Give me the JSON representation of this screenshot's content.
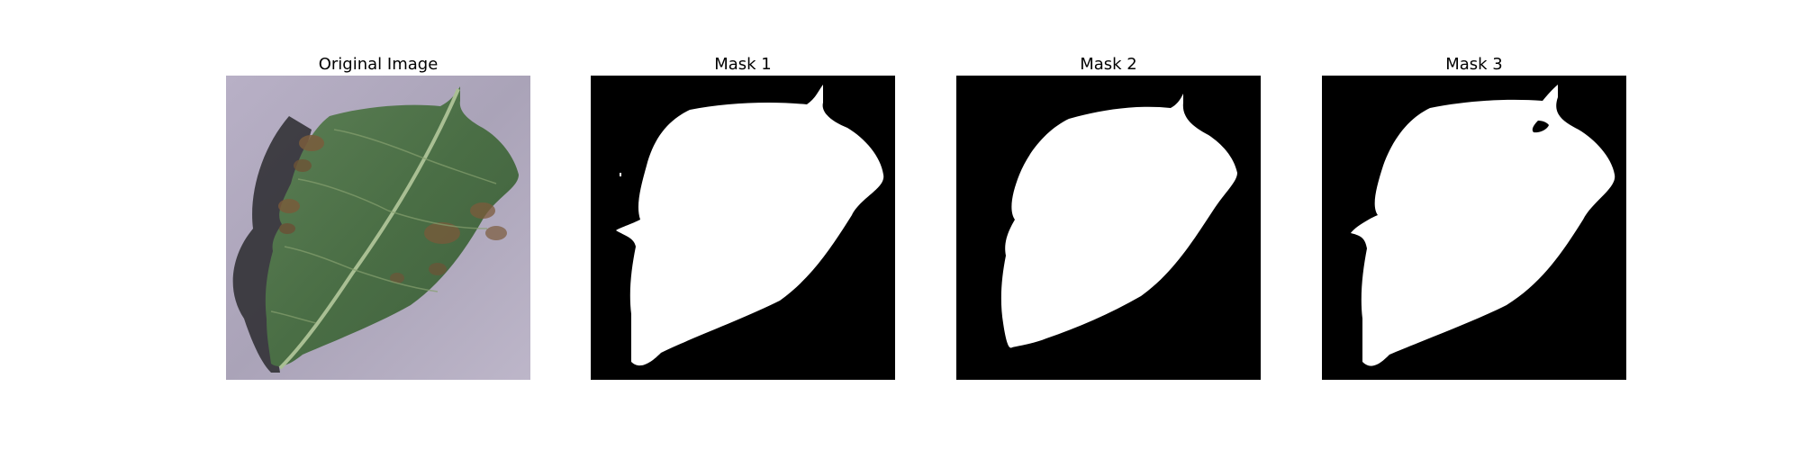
{
  "panels": [
    {
      "title": "Original Image"
    },
    {
      "title": "Mask 1"
    },
    {
      "title": "Mask 2"
    },
    {
      "title": "Mask 3"
    }
  ],
  "colors": {
    "background": "#b7b0c4",
    "leaf": "#4f7448",
    "lesion": "#7a5a3a",
    "mask_bg": "#000000",
    "mask_fg": "#ffffff"
  }
}
